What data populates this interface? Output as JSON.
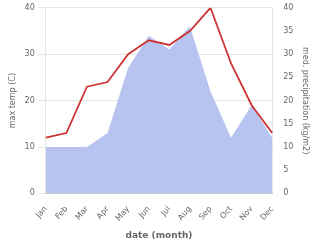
{
  "chart_data": {
    "type": "line",
    "categories": [
      "Jan",
      "Feb",
      "Mar",
      "Apr",
      "May",
      "Jun",
      "Jul",
      "Aug",
      "Sep",
      "Oct",
      "Nov",
      "Dec"
    ],
    "series": [
      {
        "type": "area",
        "color": "#b8c4f0",
        "axis": "y2",
        "values": [
          10,
          10,
          10,
          13,
          27,
          34,
          31,
          36,
          22,
          12,
          19,
          12
        ]
      },
      {
        "type": "line",
        "color": "#cc3333",
        "values": [
          12,
          13,
          23,
          24,
          30,
          33,
          32,
          35,
          40,
          28,
          19,
          13
        ]
      }
    ],
    "xlabel": "date (month)",
    "ylabel": "max temp (C)",
    "y2label": "med. precipitation (kg/m2)",
    "ylim": [
      0,
      40
    ],
    "yticks": [
      0,
      10,
      20,
      30,
      40
    ],
    "y2lim": [
      0,
      40
    ],
    "y2ticks": [
      0,
      5,
      10,
      15,
      20,
      25,
      30,
      35,
      40
    ],
    "grid": true
  }
}
